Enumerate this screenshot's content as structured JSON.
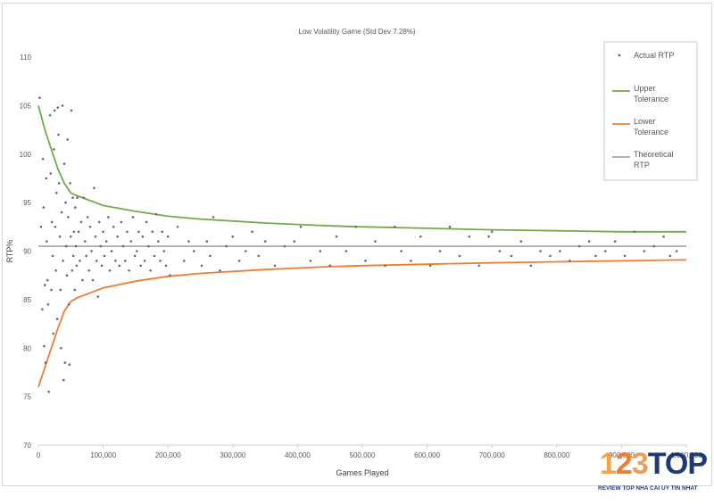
{
  "chart_data": {
    "type": "scatter",
    "title": "Low Volatility Game (Std Dev 7.28%)",
    "xlabel": "Games Played",
    "ylabel": "RTP%",
    "xlim": [
      0,
      1000000
    ],
    "ylim": [
      70,
      110
    ],
    "x_ticks": [
      "0",
      "100,000",
      "200,000",
      "300,000",
      "400,000",
      "500,000",
      "600,000",
      "700,000",
      "800,000",
      "900,000",
      "1,000,000"
    ],
    "y_ticks": [
      "70",
      "75",
      "80",
      "85",
      "90",
      "95",
      "100",
      "105",
      "110"
    ],
    "grid": false,
    "legend_position": "top-right",
    "theoretical_rtp": 90.5,
    "series": [
      {
        "name": "Actual RTP",
        "kind": "scatter",
        "color": "#5b6b83",
        "points": [
          [
            2000,
            105.8
          ],
          [
            4000,
            92.5
          ],
          [
            6000,
            84
          ],
          [
            7000,
            99.5
          ],
          [
            8000,
            94.5
          ],
          [
            9000,
            80.2
          ],
          [
            10000,
            86.5
          ],
          [
            11000,
            78.5
          ],
          [
            12000,
            97.5
          ],
          [
            13000,
            91
          ],
          [
            14000,
            87
          ],
          [
            15000,
            84.5
          ],
          [
            16000,
            75.5
          ],
          [
            18000,
            104
          ],
          [
            19000,
            98
          ],
          [
            20000,
            86
          ],
          [
            21000,
            93
          ],
          [
            22000,
            89.5
          ],
          [
            23000,
            81.5
          ],
          [
            24000,
            100.5
          ],
          [
            25000,
            104.5
          ],
          [
            26000,
            92.5
          ],
          [
            27000,
            88
          ],
          [
            28000,
            96
          ],
          [
            29000,
            83
          ],
          [
            30000,
            104.8
          ],
          [
            31000,
            102
          ],
          [
            32000,
            97
          ],
          [
            33000,
            91.5
          ],
          [
            34000,
            86
          ],
          [
            35000,
            80
          ],
          [
            36000,
            94
          ],
          [
            37000,
            105
          ],
          [
            38000,
            89
          ],
          [
            39000,
            76.7
          ],
          [
            40000,
            99
          ],
          [
            41000,
            78.5
          ],
          [
            42000,
            95
          ],
          [
            43000,
            90.5
          ],
          [
            44000,
            87.5
          ],
          [
            45000,
            101.5
          ],
          [
            46000,
            93.5
          ],
          [
            47000,
            84.5
          ],
          [
            48000,
            78.3
          ],
          [
            49000,
            97
          ],
          [
            50000,
            91.5
          ],
          [
            51000,
            104.5
          ],
          [
            52000,
            88
          ],
          [
            53000,
            95.5
          ],
          [
            54000,
            89.5
          ],
          [
            55000,
            92
          ],
          [
            56000,
            86
          ],
          [
            57000,
            94.5
          ],
          [
            58000,
            90.5
          ],
          [
            59000,
            88.5
          ],
          [
            60000,
            95.5
          ],
          [
            62000,
            92
          ],
          [
            64000,
            89
          ],
          [
            66000,
            93
          ],
          [
            68000,
            87
          ],
          [
            70000,
            95.5
          ],
          [
            72000,
            91
          ],
          [
            74000,
            89.5
          ],
          [
            76000,
            93.5
          ],
          [
            78000,
            88
          ],
          [
            80000,
            92.5
          ],
          [
            82000,
            90
          ],
          [
            84000,
            87
          ],
          [
            86000,
            96.5
          ],
          [
            88000,
            91.5
          ],
          [
            90000,
            89
          ],
          [
            92000,
            85.3
          ],
          [
            94000,
            93
          ],
          [
            96000,
            90.5
          ],
          [
            98000,
            88.5
          ],
          [
            100000,
            92
          ],
          [
            102000,
            89.5
          ],
          [
            105000,
            91
          ],
          [
            108000,
            93.5
          ],
          [
            110000,
            88
          ],
          [
            113000,
            90
          ],
          [
            116000,
            92.5
          ],
          [
            119000,
            89
          ],
          [
            122000,
            91.5
          ],
          [
            125000,
            88.5
          ],
          [
            128000,
            93
          ],
          [
            131000,
            90.5
          ],
          [
            134000,
            89
          ],
          [
            137000,
            92
          ],
          [
            140000,
            88
          ],
          [
            143000,
            91
          ],
          [
            146000,
            93.5
          ],
          [
            149000,
            89.5
          ],
          [
            152000,
            90
          ],
          [
            155000,
            92
          ],
          [
            158000,
            88.5
          ],
          [
            161000,
            91.5
          ],
          [
            164000,
            89
          ],
          [
            167000,
            93
          ],
          [
            170000,
            90.5
          ],
          [
            173000,
            88
          ],
          [
            176000,
            92
          ],
          [
            179000,
            89.5
          ],
          [
            182000,
            93.8
          ],
          [
            185000,
            91
          ],
          [
            188000,
            89
          ],
          [
            191000,
            92
          ],
          [
            194000,
            90
          ],
          [
            197000,
            88.5
          ],
          [
            200000,
            91.5
          ],
          [
            203000,
            87.5
          ],
          [
            215000,
            92.5
          ],
          [
            225000,
            89
          ],
          [
            232000,
            91
          ],
          [
            240000,
            90
          ],
          [
            252000,
            88.5
          ],
          [
            260000,
            91
          ],
          [
            265000,
            89.5
          ],
          [
            270000,
            93.5
          ],
          [
            280000,
            88
          ],
          [
            290000,
            90.5
          ],
          [
            300000,
            91.5
          ],
          [
            310000,
            89
          ],
          [
            320000,
            90
          ],
          [
            330000,
            92
          ],
          [
            340000,
            89.5
          ],
          [
            350000,
            91
          ],
          [
            365000,
            88.5
          ],
          [
            380000,
            90.5
          ],
          [
            395000,
            91
          ],
          [
            405000,
            92.5
          ],
          [
            420000,
            89
          ],
          [
            435000,
            90
          ],
          [
            450000,
            88.5
          ],
          [
            460000,
            91.5
          ],
          [
            475000,
            90
          ],
          [
            490000,
            92.5
          ],
          [
            505000,
            89
          ],
          [
            520000,
            91
          ],
          [
            535000,
            88.5
          ],
          [
            550000,
            92.5
          ],
          [
            560000,
            90
          ],
          [
            575000,
            89
          ],
          [
            590000,
            91.5
          ],
          [
            605000,
            88.5
          ],
          [
            620000,
            90
          ],
          [
            635000,
            92.5
          ],
          [
            650000,
            89.5
          ],
          [
            665000,
            91.5
          ],
          [
            680000,
            88.5
          ],
          [
            695000,
            91.5
          ],
          [
            700000,
            92
          ],
          [
            712000,
            90
          ],
          [
            730000,
            89.5
          ],
          [
            745000,
            91
          ],
          [
            760000,
            88.5
          ],
          [
            775000,
            90
          ],
          [
            790000,
            89.5
          ],
          [
            805000,
            90
          ],
          [
            820000,
            89
          ],
          [
            835000,
            90.5
          ],
          [
            850000,
            91
          ],
          [
            860000,
            89.5
          ],
          [
            875000,
            90
          ],
          [
            890000,
            91
          ],
          [
            905000,
            89.5
          ],
          [
            920000,
            92
          ],
          [
            935000,
            90
          ],
          [
            950000,
            90.5
          ],
          [
            965000,
            91.5
          ],
          [
            975000,
            89.5
          ],
          [
            985000,
            90
          ]
        ]
      },
      {
        "name": "Upper Tolerance",
        "kind": "line",
        "color": "#70ad47",
        "points": [
          [
            0,
            105
          ],
          [
            10000,
            102.5
          ],
          [
            20000,
            100.5
          ],
          [
            30000,
            98.5
          ],
          [
            40000,
            97
          ],
          [
            50000,
            96
          ],
          [
            60000,
            95.7
          ],
          [
            80000,
            95.2
          ],
          [
            100000,
            94.7
          ],
          [
            150000,
            94.1
          ],
          [
            200000,
            93.6
          ],
          [
            250000,
            93.3
          ],
          [
            300000,
            93.1
          ],
          [
            350000,
            92.9
          ],
          [
            400000,
            92.75
          ],
          [
            450000,
            92.6
          ],
          [
            500000,
            92.5
          ],
          [
            600000,
            92.35
          ],
          [
            700000,
            92.2
          ],
          [
            800000,
            92.1
          ],
          [
            900000,
            92.0
          ],
          [
            1000000,
            92.0
          ]
        ]
      },
      {
        "name": "Lower Tolerance",
        "kind": "line",
        "color": "#ed7d31",
        "points": [
          [
            0,
            76
          ],
          [
            10000,
            78
          ],
          [
            20000,
            80
          ],
          [
            30000,
            82
          ],
          [
            40000,
            83.8
          ],
          [
            50000,
            84.8
          ],
          [
            60000,
            85.2
          ],
          [
            80000,
            85.7
          ],
          [
            100000,
            86.2
          ],
          [
            150000,
            86.9
          ],
          [
            200000,
            87.4
          ],
          [
            250000,
            87.7
          ],
          [
            300000,
            87.9
          ],
          [
            350000,
            88.1
          ],
          [
            400000,
            88.25
          ],
          [
            450000,
            88.4
          ],
          [
            500000,
            88.5
          ],
          [
            600000,
            88.65
          ],
          [
            700000,
            88.8
          ],
          [
            800000,
            88.9
          ],
          [
            900000,
            89.0
          ],
          [
            1000000,
            89.1
          ]
        ]
      },
      {
        "name": "Theoretical RTP",
        "kind": "line",
        "color": "#a5a5a5",
        "points": [
          [
            0,
            90.5
          ],
          [
            1000000,
            90.5
          ]
        ]
      }
    ],
    "legend": [
      {
        "label_lines": [
          "Actual RTP"
        ],
        "kind": "marker",
        "color": "#5b6b83"
      },
      {
        "label_lines": [
          "Upper",
          "Tolerance"
        ],
        "kind": "line",
        "color": "#70ad47"
      },
      {
        "label_lines": [
          "Lower",
          "Tolerance"
        ],
        "kind": "line",
        "color": "#ed7d31"
      },
      {
        "label_lines": [
          "Theoretical",
          "RTP"
        ],
        "kind": "line",
        "color": "#a5a5a5"
      }
    ]
  },
  "watermark": {
    "logo_digits": [
      "1",
      "2",
      "3"
    ],
    "logo_word": "TOP",
    "tagline": "REVIEW TOP NHA CAI UY TIN NHAT"
  }
}
